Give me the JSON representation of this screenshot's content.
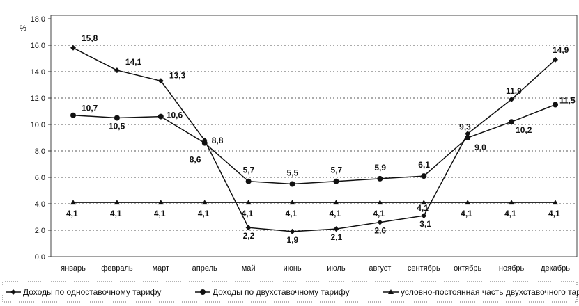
{
  "chart_data": {
    "type": "line",
    "title": "",
    "ylabel": "%",
    "xlabel": "",
    "ylim": [
      0,
      18
    ],
    "ystep": 2,
    "yticks": [
      "0,0",
      "2,0",
      "4,0",
      "6,0",
      "8,0",
      "10,0",
      "12,0",
      "14,0",
      "16,0",
      "18,0"
    ],
    "grid": true,
    "legend_position": "bottom",
    "categories": [
      "январь",
      "февраль",
      "март",
      "апрель",
      "май",
      "июнь",
      "июль",
      "август",
      "сентябрь",
      "октябрь",
      "ноябрь",
      "декабрь"
    ],
    "series": [
      {
        "name": "Доходы по одноставочному тарифу",
        "marker": "diamond",
        "values": [
          15.8,
          14.1,
          13.3,
          8.8,
          2.2,
          1.9,
          2.1,
          2.6,
          3.1,
          9.3,
          11.9,
          14.9
        ],
        "labels": [
          "15,8",
          "14,1",
          "13,3",
          "8,8",
          "2,2",
          "1,9",
          "2,1",
          "2,6",
          "3,1",
          "9,3",
          "11,9",
          "14,9"
        ]
      },
      {
        "name": "Доходы по двухставочному тарифу",
        "marker": "circle",
        "values": [
          10.7,
          10.5,
          10.6,
          8.6,
          5.7,
          5.5,
          5.7,
          5.9,
          6.1,
          9.0,
          10.2,
          11.5
        ],
        "labels": [
          "10,7",
          "10,5",
          "10,6",
          "8,6",
          "5,7",
          "5,5",
          "5,7",
          "5,9",
          "6,1",
          "9,0",
          "10,2",
          "11,5"
        ]
      },
      {
        "name": "условно-постоянная часть двухставочного тарифа",
        "marker": "triangle",
        "values": [
          4.1,
          4.1,
          4.1,
          4.1,
          4.1,
          4.1,
          4.1,
          4.1,
          4.1,
          4.1,
          4.1,
          4.1
        ],
        "labels": [
          "4,1",
          "4,1",
          "4,1",
          "4,1",
          "4,1",
          "4,1",
          "4,1",
          "4,1",
          "4,1",
          "4,1",
          "4,1",
          "4,1"
        ]
      }
    ]
  }
}
